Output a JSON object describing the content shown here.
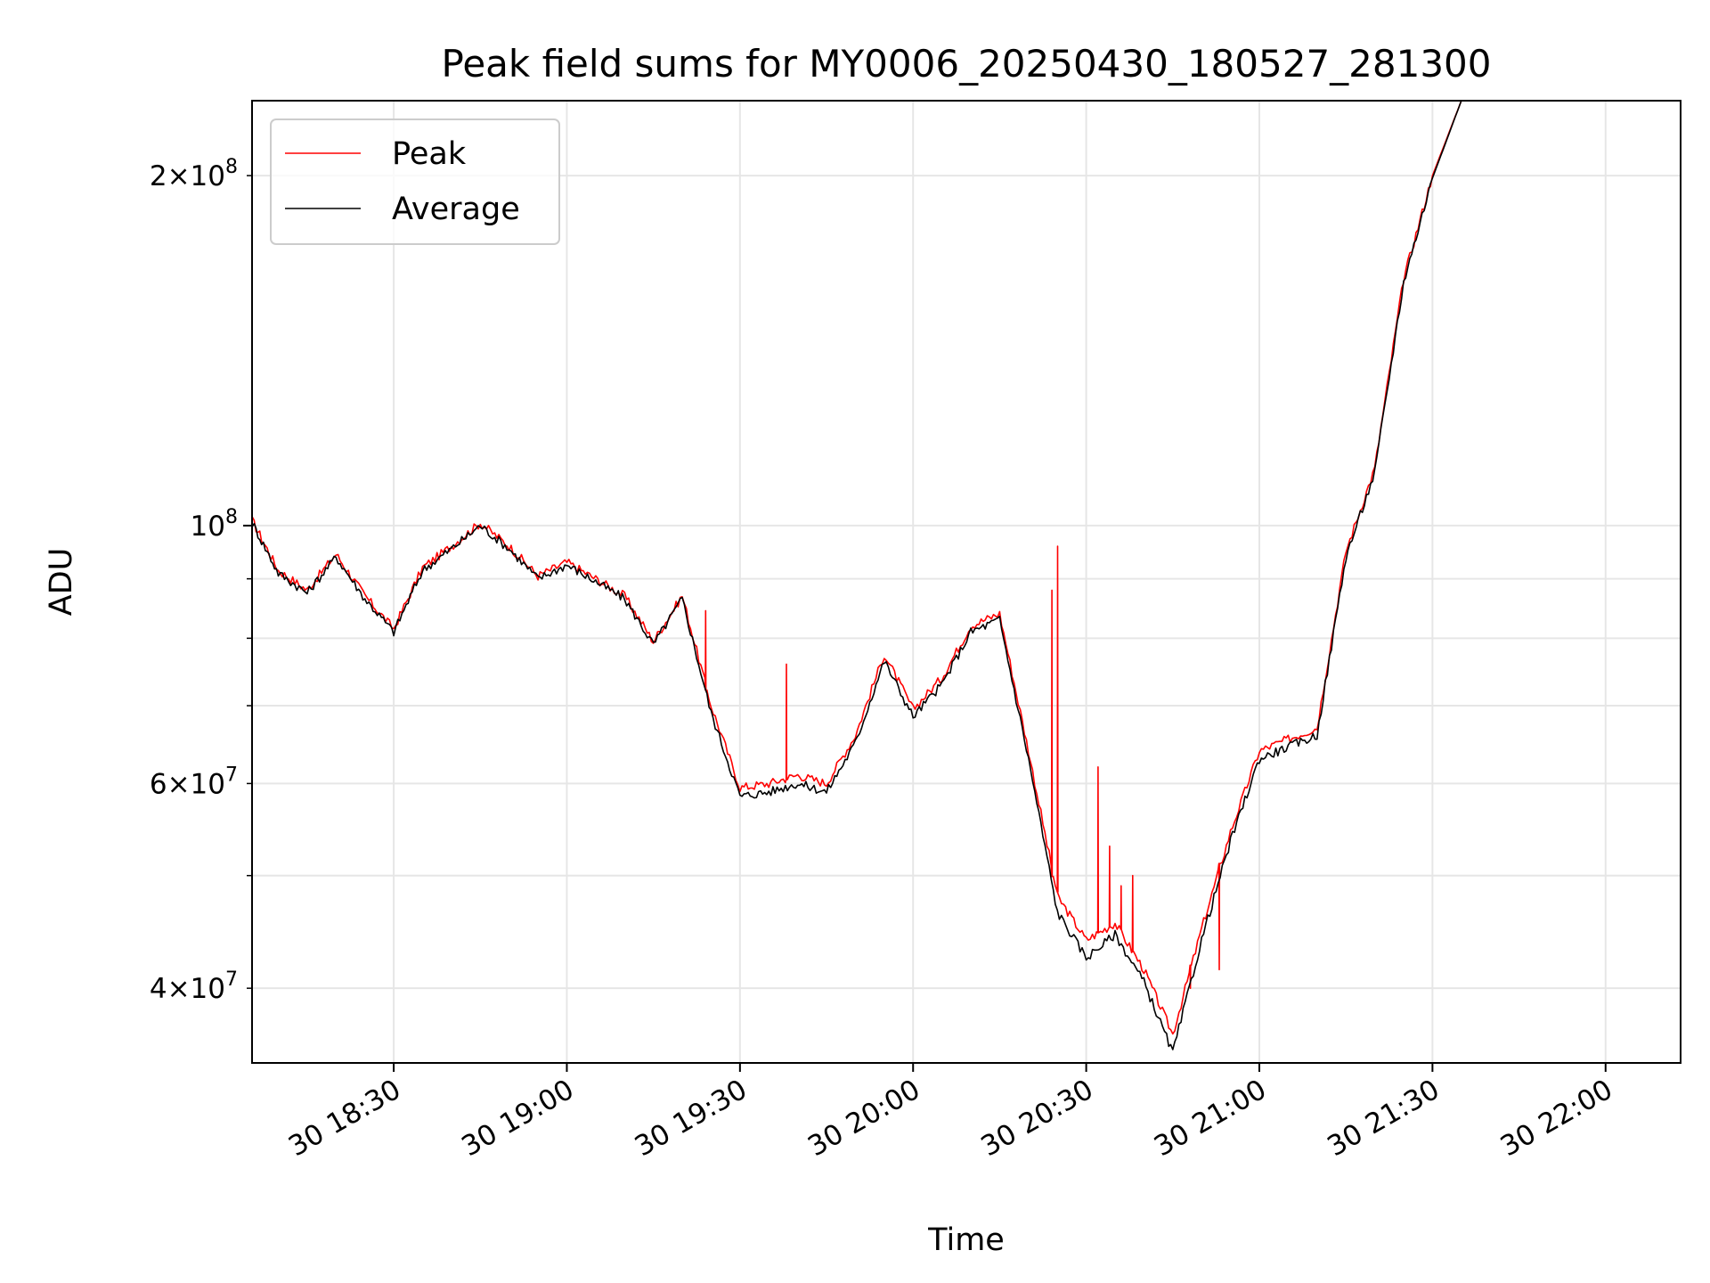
{
  "chart_data": {
    "type": "line",
    "title": "Peak field sums for MY0006_20250430_180527_281300",
    "xlabel": "Time",
    "ylabel": "ADU",
    "yscale": "log",
    "xlim": [
      "2025-04-30 18:05:27",
      "2025-04-30 22:13:00"
    ],
    "ylim": [
      34500000,
      232000000
    ],
    "grid": true,
    "legend_position": "upper left",
    "x_ticks": [
      {
        "label": "30 18:30",
        "t": "2025-04-30 18:30"
      },
      {
        "label": "30 19:00",
        "t": "2025-04-30 19:00"
      },
      {
        "label": "30 19:30",
        "t": "2025-04-30 19:30"
      },
      {
        "label": "30 20:00",
        "t": "2025-04-30 20:00"
      },
      {
        "label": "30 20:30",
        "t": "2025-04-30 20:30"
      },
      {
        "label": "30 21:00",
        "t": "2025-04-30 21:00"
      },
      {
        "label": "30 21:30",
        "t": "2025-04-30 21:30"
      },
      {
        "label": "30 22:00",
        "t": "2025-04-30 22:00"
      }
    ],
    "y_ticks_major": [
      {
        "value": 100000000,
        "mantissa": "",
        "exponent": "8"
      }
    ],
    "y_ticks_minor": [
      {
        "value": 40000000,
        "mantissa": "4",
        "exponent": "7"
      },
      {
        "value": 50000000,
        "mantissa": "",
        "exponent": ""
      },
      {
        "value": 60000000,
        "mantissa": "6",
        "exponent": "7"
      },
      {
        "value": 70000000,
        "mantissa": "",
        "exponent": ""
      },
      {
        "value": 80000000,
        "mantissa": "",
        "exponent": ""
      },
      {
        "value": 90000000,
        "mantissa": "",
        "exponent": ""
      },
      {
        "value": 200000000,
        "mantissa": "2",
        "exponent": "8"
      }
    ],
    "x": [
      "18:05:30",
      "18:10",
      "18:15",
      "18:20",
      "18:25",
      "18:30",
      "18:35",
      "18:40",
      "18:45",
      "18:50",
      "18:55",
      "19:00",
      "19:05",
      "19:10",
      "19:15",
      "19:20",
      "19:25",
      "19:30",
      "19:35",
      "19:40",
      "19:45",
      "19:50",
      "19:55",
      "20:00",
      "20:05",
      "20:10",
      "20:15",
      "20:20",
      "20:25",
      "20:30",
      "20:35",
      "20:40",
      "20:45",
      "20:50",
      "20:55",
      "21:00",
      "21:05",
      "21:10",
      "21:15",
      "21:20",
      "21:25",
      "21:30",
      "21:35"
    ],
    "series": [
      {
        "name": "Peak",
        "color": "#ff0000",
        "values": [
          101000000,
          91500000,
          88000000,
          94500000,
          87000000,
          81500000,
          92000000,
          96000000,
          100500000,
          96000000,
          90500000,
          93000000,
          90000000,
          87000000,
          79500000,
          87000000,
          70000000,
          59500000,
          60000000,
          61000000,
          60000000,
          66000000,
          77500000,
          69500000,
          74000000,
          82000000,
          84000000,
          64000000,
          48000000,
          44000000,
          45500000,
          41500000,
          36500000,
          45000000,
          54500000,
          64000000,
          65500000,
          67000000,
          95000000,
          112000000,
          163000000,
          200000000,
          232000000
        ],
        "spikes": [
          {
            "t": "19:24",
            "value": 84500000
          },
          {
            "t": "19:38",
            "value": 76000000
          },
          {
            "t": "20:24",
            "value": 88000000
          },
          {
            "t": "20:25",
            "value": 96000000
          },
          {
            "t": "20:32",
            "value": 62000000
          },
          {
            "t": "20:34",
            "value": 53000000
          },
          {
            "t": "20:36",
            "value": 49000000
          },
          {
            "t": "20:38",
            "value": 50000000
          },
          {
            "t": "20:48",
            "value": 40000000
          },
          {
            "t": "20:53",
            "value": 41500000
          }
        ]
      },
      {
        "name": "Average",
        "color": "#000000",
        "values": [
          100500000,
          91000000,
          87500000,
          94000000,
          86500000,
          81000000,
          91500000,
          95500000,
          100000000,
          95500000,
          90000000,
          92500000,
          89500000,
          86500000,
          79000000,
          86500000,
          69000000,
          58500000,
          59000000,
          60000000,
          59000000,
          65000000,
          76500000,
          68500000,
          73000000,
          81000000,
          83000000,
          63000000,
          46500000,
          42500000,
          44500000,
          40500000,
          35200000,
          44000000,
          53500000,
          63000000,
          64500000,
          66000000,
          94000000,
          111000000,
          162000000,
          199000000,
          232000000
        ]
      }
    ]
  }
}
